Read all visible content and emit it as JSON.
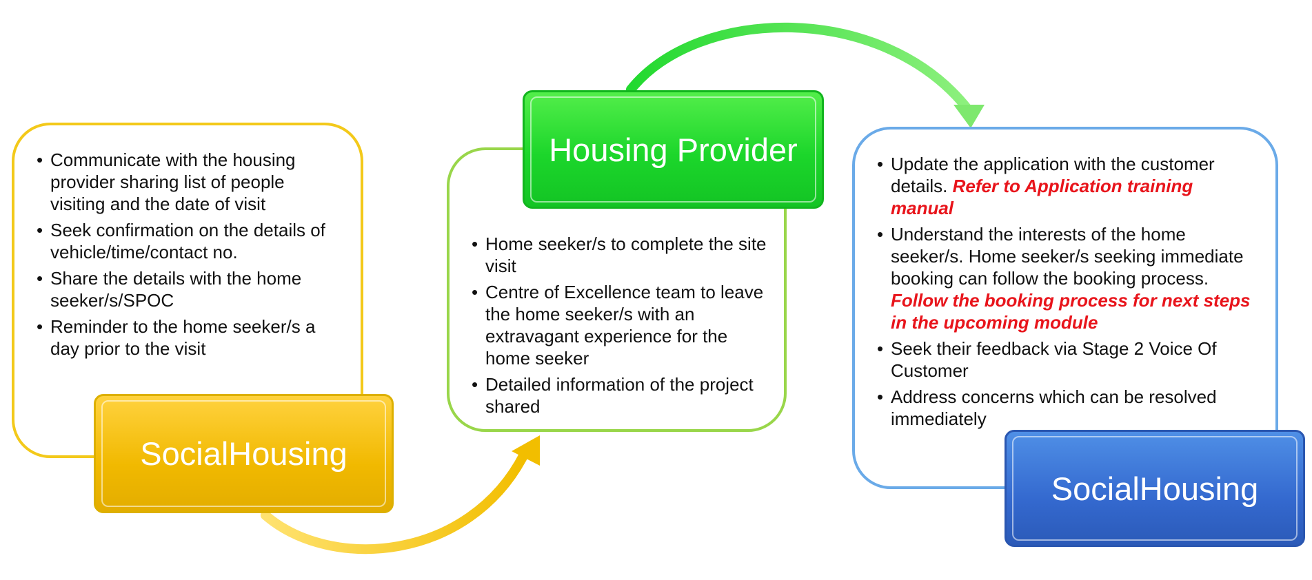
{
  "colors": {
    "yellow": "#f1b900",
    "green": "#1cd62b",
    "blue": "#3469cf",
    "highlight_red": "#e8141b"
  },
  "stages": [
    {
      "label": "SocialHousing",
      "bullets": [
        "Communicate with the  housing provider sharing list of people visiting and the date of visit",
        "Seek confirmation on the details of vehicle/time/contact no.",
        "Share the details with the home seeker/s/SPOC",
        "Reminder to the home seeker/s a day prior to the visit"
      ]
    },
    {
      "label": "Housing Provider",
      "bullets": [
        "Home seeker/s to complete the site visit",
        "Centre of Excellence team to leave the home seeker/s with an extravagant experience for the home seeker",
        "Detailed information of the project shared"
      ]
    },
    {
      "label": "SocialHousing",
      "bullets": [
        {
          "text": "Update the application with the customer details.",
          "highlight": "Refer to Application training manual"
        },
        {
          "text": "Understand the interests of the home seeker/s. Home seeker/s seeking immediate booking can follow the booking process.",
          "highlight": "Follow the booking process for next steps in the upcoming module"
        },
        {
          "text": "Seek their feedback via Stage 2 Voice Of Customer"
        },
        {
          "text": "Address concerns which can be resolved immediately"
        }
      ]
    }
  ]
}
